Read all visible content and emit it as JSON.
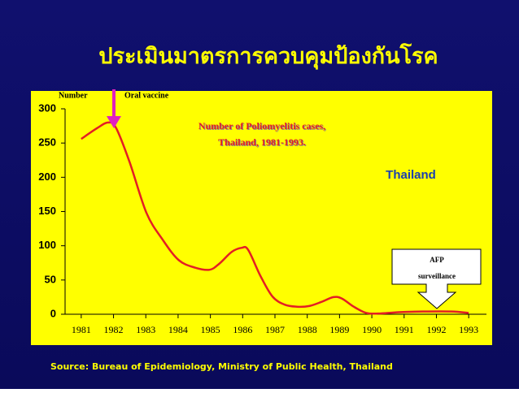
{
  "title": "ประเมินมาตรการควบคุมป้องกันโรค",
  "chart_data": {
    "type": "line",
    "y_label": "Number",
    "annotations": {
      "vaccine": "Oral vaccine",
      "chart_title": [
        "Number of Poliomyelitis cases,",
        "Thailand, 1981-1993."
      ],
      "afp": [
        "AFP",
        "surveillance"
      ]
    },
    "x": [
      1981,
      1981.5,
      1981.83,
      1982.08,
      1982.5,
      1983.02,
      1983.52,
      1984.02,
      1984.53,
      1984.98,
      1985.28,
      1985.66,
      1985.97,
      1986.17,
      1986.55,
      1986.92,
      1987.3,
      1987.68,
      1988.06,
      1988.44,
      1988.81,
      1989.07,
      1989.44,
      1989.82,
      1990.2,
      1990.83,
      1991.58,
      1992.46,
      1993
    ],
    "series": [
      {
        "name": "Thailand",
        "color": "#e31e24",
        "values": [
          256,
          272,
          280,
          272,
          222,
          148,
          109,
          79,
          68,
          65,
          74,
          91,
          97,
          94,
          56,
          26,
          14,
          11,
          12,
          18,
          25,
          23,
          11,
          2,
          1,
          3,
          4,
          4,
          2
        ]
      }
    ],
    "xlim": [
      1980.5,
      1993.55
    ],
    "xticks": [
      1981,
      1982,
      1983,
      1984,
      1985,
      1986,
      1987,
      1988,
      1989,
      1990,
      1991,
      1992,
      1993
    ],
    "ylim": [
      0,
      300
    ],
    "yticks": [
      0,
      50,
      100,
      150,
      200,
      250,
      300
    ]
  },
  "source": "Source:  Bureau of Epidemiology, Ministry of Public Health, Thailand"
}
